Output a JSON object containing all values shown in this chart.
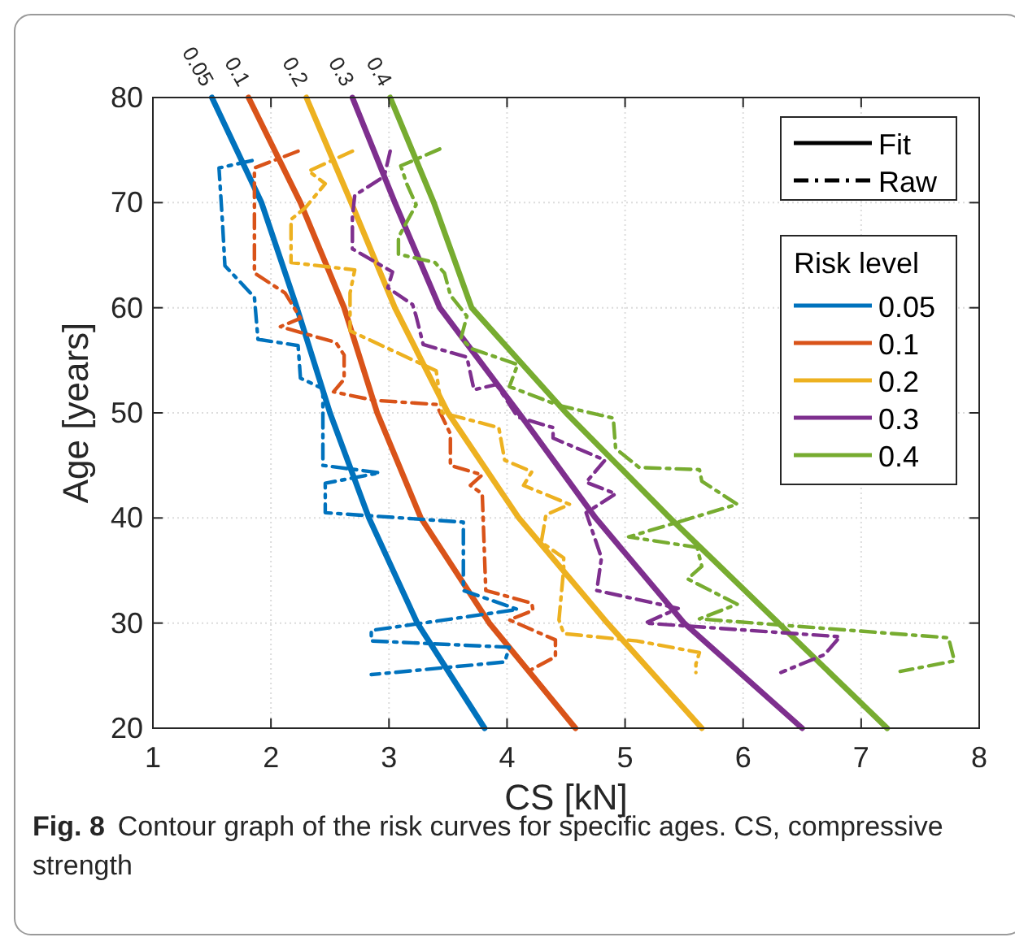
{
  "chart_data": {
    "type": "line",
    "xlabel": "CS [kN]",
    "ylabel": "Age [years]",
    "legend_title": "Risk level",
    "legend": "top right",
    "grid": true,
    "line_style": "solid",
    "marker": "none",
    "xlim": [
      1,
      8
    ],
    "xticks": [
      1,
      2,
      3,
      4,
      5,
      6,
      7,
      8
    ],
    "ylim": [
      20,
      80
    ],
    "yticks": [
      20,
      30,
      40,
      50,
      60,
      70,
      80
    ],
    "annotations": [
      "Fig. 8",
      "Contour graph of the risk curves for specific ages. CS, compressive strength",
      "Fit",
      "Raw"
    ],
    "series": [
      {
        "name": "0.05",
        "color": "#0072bd",
        "x": [
          1.5,
          1.92,
          2.22,
          2.5,
          2.83,
          3.24,
          3.81
        ],
        "values": [
          80,
          70,
          60,
          50,
          40,
          30,
          20
        ]
      },
      {
        "name": "0.1",
        "color": "#d95319",
        "x": [
          1.81,
          2.25,
          2.62,
          2.9,
          3.27,
          3.85,
          4.58
        ],
        "values": [
          80,
          70,
          60,
          50,
          40,
          30,
          20
        ]
      },
      {
        "name": "0.2",
        "color": "#edb120",
        "x": [
          2.3,
          2.68,
          3.05,
          3.5,
          4.1,
          4.85,
          5.65
        ],
        "values": [
          80,
          70,
          60,
          50,
          40,
          30,
          20
        ]
      },
      {
        "name": "0.3",
        "color": "#7e2f8e",
        "x": [
          2.69,
          3.05,
          3.43,
          4.1,
          4.75,
          5.5,
          6.5
        ],
        "values": [
          80,
          70,
          60,
          50,
          40,
          30,
          20
        ]
      },
      {
        "name": "0.4",
        "color": "#77ac30",
        "x": [
          3.01,
          3.38,
          3.7,
          4.5,
          5.38,
          6.3,
          7.22
        ],
        "values": [
          80,
          70,
          60,
          50,
          40,
          30,
          20
        ]
      },
      {
        "color": "#0072bd",
        "line_style": "dashdot",
        "x": [
          1.84,
          1.56,
          1.59,
          1.61,
          1.86,
          1.89,
          2.23,
          2.25,
          2.44,
          2.44,
          2.92,
          2.46,
          2.46,
          3.63,
          3.63,
          4.09,
          2.85,
          2.85,
          4.02,
          3.98,
          2.85
        ],
        "values": [
          74,
          73.3,
          68,
          64,
          61,
          57,
          56.4,
          53.3,
          52.3,
          45,
          44.3,
          43.3,
          40.5,
          39.6,
          33.1,
          31.3,
          29.3,
          28.3,
          27.7,
          26.3,
          25.1
        ]
      },
      {
        "color": "#d95319",
        "line_style": "dashdot",
        "x": [
          2.23,
          1.86,
          1.86,
          2.12,
          2.25,
          2.08,
          2.55,
          2.62,
          2.62,
          2.53,
          2.87,
          3.4,
          3.52,
          3.52,
          3.79,
          3.69,
          3.79,
          3.82,
          4.21,
          4.22,
          4.02,
          4.41,
          4.41,
          4.21
        ],
        "values": [
          74.9,
          73.3,
          63.3,
          61.4,
          59,
          58.2,
          56.7,
          55.5,
          53.2,
          52,
          51.2,
          50.8,
          48,
          45,
          44.1,
          43.1,
          42.3,
          33.1,
          31.9,
          31.2,
          30.3,
          28.4,
          26.8,
          25.6
        ]
      },
      {
        "color": "#edb120",
        "line_style": "dashdot",
        "x": [
          2.69,
          2.32,
          2.46,
          2.29,
          2.17,
          2.17,
          2.71,
          2.67,
          2.67,
          3.4,
          3.45,
          3.93,
          3.98,
          4.21,
          4.14,
          4.53,
          4.33,
          4.29,
          4.48,
          4.48,
          4.44,
          4.48,
          5.1,
          5.63,
          5.6,
          5.6
        ],
        "values": [
          74.9,
          73,
          71.8,
          69.5,
          68.4,
          64.3,
          63.6,
          61.4,
          57.8,
          54,
          50,
          48.6,
          45.5,
          44.4,
          43.1,
          41.3,
          40.3,
          37.7,
          36.2,
          35.2,
          30.3,
          29,
          28.3,
          27.2,
          26.1,
          25.3
        ]
      },
      {
        "color": "#7e2f8e",
        "line_style": "dashdot",
        "x": [
          3.01,
          2.96,
          2.71,
          2.69,
          2.69,
          3.03,
          2.99,
          3.2,
          3.23,
          3.29,
          3.66,
          3.72,
          3.91,
          4.09,
          4.39,
          4.39,
          4.83,
          4.67,
          4.92,
          4.67,
          4.8,
          4.76,
          5.45,
          5.17,
          6.82,
          6.69,
          6.32
        ],
        "values": [
          74.9,
          72.5,
          70.7,
          68.6,
          65.6,
          63.4,
          61.9,
          60.3,
          59.2,
          56.5,
          55.3,
          52.2,
          52.7,
          49.6,
          48.6,
          47.6,
          45.5,
          43.4,
          42.3,
          40.5,
          36.2,
          33.1,
          31.4,
          30,
          28.7,
          27,
          25.3
        ]
      },
      {
        "color": "#77ac30",
        "line_style": "dashdot",
        "x": [
          3.43,
          3.1,
          3.15,
          3.23,
          3.08,
          3.08,
          3.39,
          3.47,
          3.52,
          3.66,
          3.61,
          3.7,
          4.09,
          4.02,
          4.44,
          4.9,
          4.92,
          5.12,
          5.63,
          5.65,
          5.95,
          5.03,
          5.61,
          5.65,
          5.53,
          5.95,
          5.63,
          7.74,
          7.79,
          7.33
        ],
        "values": [
          75.1,
          73.5,
          71.8,
          69.8,
          66.7,
          65.1,
          64.3,
          63.3,
          61.2,
          59.2,
          57.1,
          56.1,
          54.6,
          52.5,
          50.7,
          49.5,
          46.6,
          44.8,
          44.6,
          43.5,
          41.3,
          38.2,
          37.2,
          35.4,
          34.2,
          31.8,
          30.4,
          28.6,
          26.4,
          25.4
        ]
      }
    ]
  }
}
